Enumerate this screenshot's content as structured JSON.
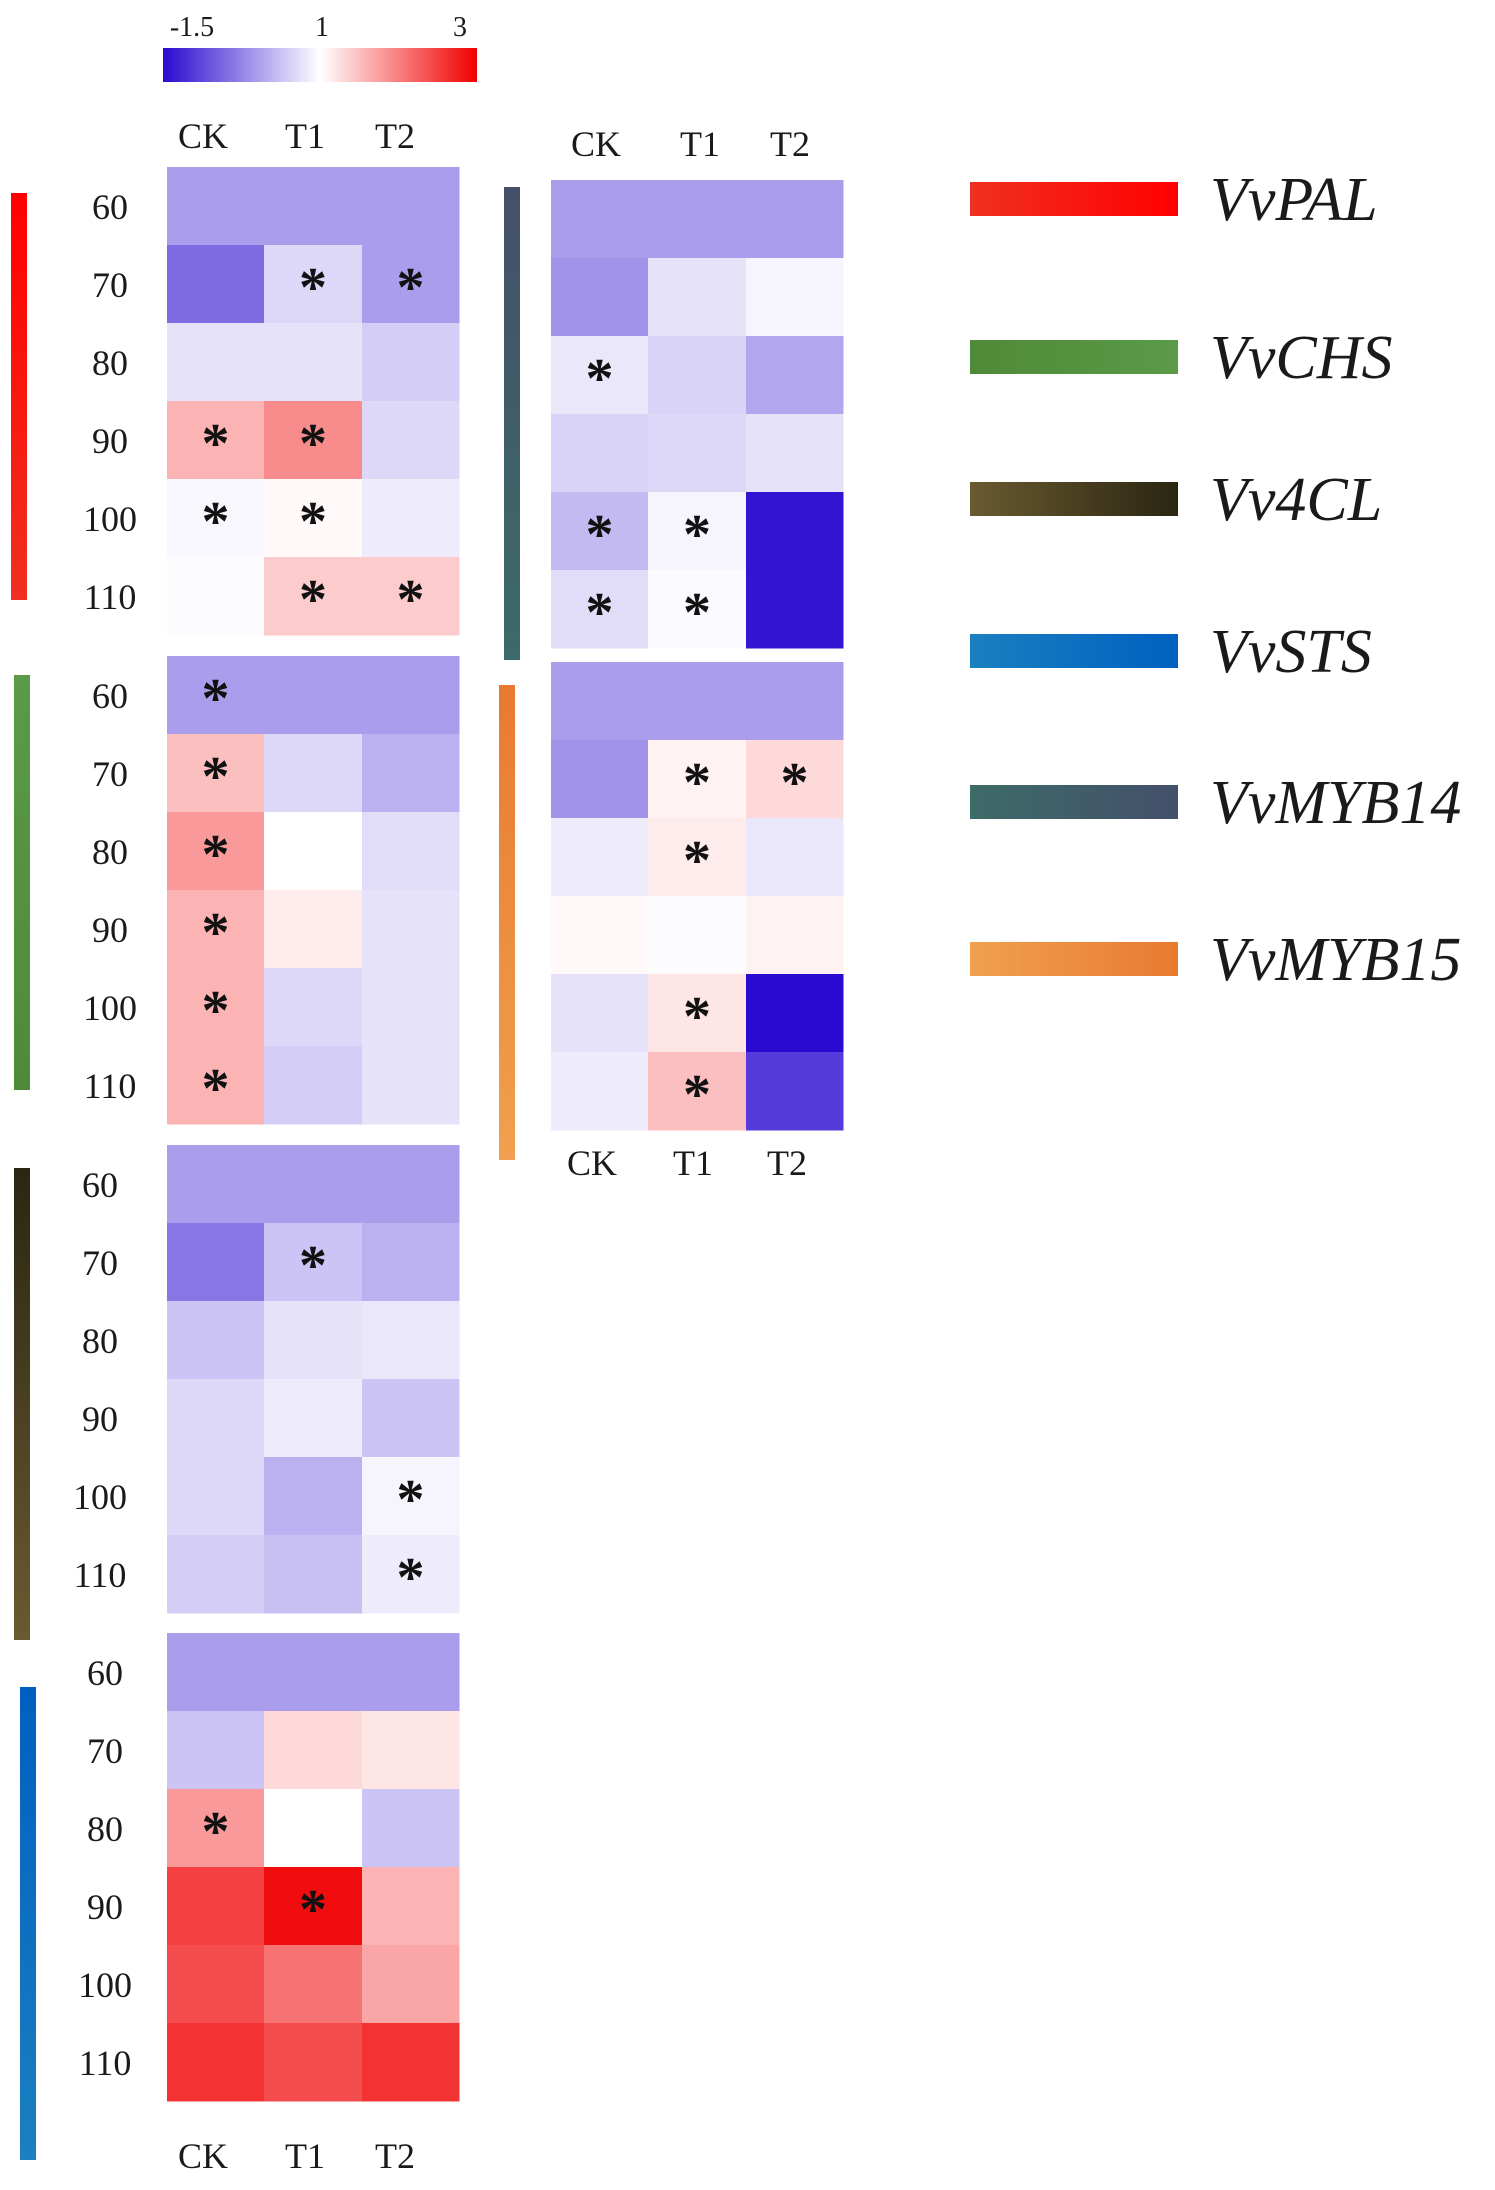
{
  "chart_data": {
    "type": "heatmap",
    "colorbar": {
      "min": -1.5,
      "mid": 1,
      "max": 3,
      "tick_labels": [
        "-1.5",
        "1",
        "3"
      ],
      "colors": {
        "low": "#2a0ad0",
        "mid": "#ffffff",
        "high": "#f00000"
      }
    },
    "columns": [
      "CK",
      "T1",
      "T2"
    ],
    "rows": [
      "60",
      "70",
      "80",
      "90",
      "100",
      "110"
    ],
    "panels": [
      {
        "gene": "VvPAL",
        "values": [
          [
            0,
            0,
            0
          ],
          [
            -0.5,
            0.6,
            0
          ],
          [
            0.7,
            0.7,
            0.5
          ],
          [
            1.6,
            1.9,
            0.6
          ],
          [
            0.92,
            1.05,
            0.8
          ],
          [
            0.97,
            1.4,
            1.4
          ]
        ],
        "significant": [
          [
            0,
            0,
            0
          ],
          [
            0,
            1,
            1
          ],
          [
            0,
            0,
            0
          ],
          [
            1,
            1,
            0
          ],
          [
            1,
            1,
            0
          ],
          [
            0,
            1,
            1
          ]
        ]
      },
      {
        "gene": "VvCHS",
        "values": [
          [
            0,
            0,
            0
          ],
          [
            1.5,
            0.6,
            0.2
          ],
          [
            1.8,
            1.0,
            0.65
          ],
          [
            1.6,
            1.15,
            0.7
          ],
          [
            1.6,
            0.6,
            0.7
          ],
          [
            1.6,
            0.5,
            0.7
          ]
        ],
        "significant": [
          [
            1,
            0,
            0
          ],
          [
            1,
            0,
            0
          ],
          [
            1,
            0,
            0
          ],
          [
            1,
            0,
            0
          ],
          [
            1,
            0,
            0
          ],
          [
            1,
            0,
            0
          ]
        ]
      },
      {
        "gene": "Vv4CL",
        "values": [
          [
            0,
            0,
            0
          ],
          [
            -0.4,
            0.4,
            0.2
          ],
          [
            0.4,
            0.7,
            0.75
          ],
          [
            0.6,
            0.8,
            0.4
          ],
          [
            0.6,
            0.2,
            0.9
          ],
          [
            0.5,
            0.35,
            0.8
          ]
        ],
        "significant": [
          [
            0,
            0,
            0
          ],
          [
            0,
            1,
            0
          ],
          [
            0,
            0,
            0
          ],
          [
            0,
            0,
            0
          ],
          [
            0,
            0,
            1
          ],
          [
            0,
            0,
            1
          ]
        ]
      },
      {
        "gene": "VvSTS",
        "values": [
          [
            0,
            0,
            0
          ],
          [
            0.4,
            1.3,
            1.2
          ],
          [
            1.8,
            1.0,
            0.4
          ],
          [
            2.5,
            2.9,
            1.6
          ],
          [
            2.4,
            2.1,
            1.7
          ],
          [
            2.6,
            2.4,
            2.6
          ]
        ],
        "significant": [
          [
            0,
            0,
            0
          ],
          [
            0,
            0,
            0
          ],
          [
            1,
            0,
            0
          ],
          [
            0,
            1,
            0
          ],
          [
            0,
            0,
            0
          ],
          [
            0,
            0,
            0
          ]
        ]
      },
      {
        "gene": "VvMYB14",
        "values": [
          [
            0,
            0,
            0
          ],
          [
            -0.1,
            0.7,
            0.9
          ],
          [
            0.75,
            0.55,
            0.1
          ],
          [
            0.55,
            0.6,
            0.7
          ],
          [
            0.3,
            0.9,
            -1.4
          ],
          [
            0.65,
            0.95,
            -1.4
          ]
        ],
        "significant": [
          [
            0,
            0,
            0
          ],
          [
            0,
            0,
            0
          ],
          [
            1,
            0,
            0
          ],
          [
            0,
            0,
            0
          ],
          [
            1,
            1,
            0
          ],
          [
            1,
            1,
            0
          ]
        ]
      },
      {
        "gene": "VvMYB15",
        "values": [
          [
            0,
            0,
            0
          ],
          [
            -0.1,
            1.1,
            1.3
          ],
          [
            0.8,
            1.15,
            0.75
          ],
          [
            1.05,
            0.97,
            1.1
          ],
          [
            0.7,
            1.2,
            -1.5
          ],
          [
            0.8,
            1.5,
            -1.0
          ]
        ],
        "significant": [
          [
            0,
            0,
            0
          ],
          [
            0,
            1,
            1
          ],
          [
            0,
            1,
            0
          ],
          [
            0,
            0,
            0
          ],
          [
            0,
            1,
            0
          ],
          [
            0,
            1,
            0
          ]
        ]
      }
    ],
    "significance_marker": "*",
    "legend": [
      {
        "label": "VvPAL",
        "color_start": "#f03020",
        "color_end": "#ff0000"
      },
      {
        "label": "VvCHS",
        "color_start": "#4f8a38",
        "color_end": "#5a9a48"
      },
      {
        "label": "Vv4CL",
        "color_start": "#6a5a30",
        "color_end": "#2a2612"
      },
      {
        "label": "VvSTS",
        "color_start": "#1a80c0",
        "color_end": "#0060c0"
      },
      {
        "label": "VvMYB14",
        "color_start": "#3d6b68",
        "color_end": "#44506a"
      },
      {
        "label": "VvMYB15",
        "color_start": "#f0a050",
        "color_end": "#e87a30"
      }
    ],
    "top_column_labels": [
      "CK",
      "T1",
      "T2"
    ]
  }
}
